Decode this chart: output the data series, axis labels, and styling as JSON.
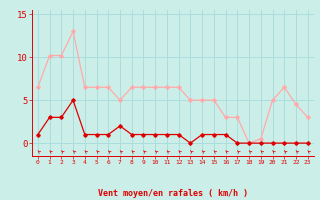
{
  "x": [
    0,
    1,
    2,
    3,
    4,
    5,
    6,
    7,
    8,
    9,
    10,
    11,
    12,
    13,
    14,
    15,
    16,
    17,
    18,
    19,
    20,
    21,
    22,
    23
  ],
  "rafales": [
    6.5,
    10.2,
    10.2,
    13.0,
    6.5,
    6.5,
    6.5,
    5.0,
    6.5,
    6.5,
    6.5,
    6.5,
    6.5,
    5.0,
    5.0,
    5.0,
    3.0,
    3.0,
    0.0,
    0.5,
    5.0,
    6.5,
    4.5,
    3.0
  ],
  "vent_moyen": [
    1.0,
    3.0,
    3.0,
    5.0,
    1.0,
    1.0,
    1.0,
    2.0,
    1.0,
    1.0,
    1.0,
    1.0,
    1.0,
    0.0,
    1.0,
    1.0,
    1.0,
    0.0,
    0.0,
    0.0,
    0.0,
    0.0,
    0.0,
    0.0
  ],
  "color_rafales": "#ffaaaa",
  "color_vent": "#dd0000",
  "bg_color": "#cceee8",
  "grid_color": "#aadddd",
  "xlabel": "Vent moyen/en rafales ( km/h )",
  "ytick_labels": [
    "0",
    "5",
    "10",
    "15"
  ],
  "ytick_vals": [
    0,
    5,
    10,
    15
  ],
  "ylim": [
    -1.5,
    15.5
  ],
  "xlim": [
    -0.5,
    23.5
  ],
  "xtick_labels": [
    "0",
    "1",
    "2",
    "3",
    "4",
    "5",
    "6",
    "7",
    "8",
    "9",
    "10",
    "11",
    "12",
    "13",
    "14",
    "15",
    "16",
    "17",
    "18",
    "19",
    "20",
    "21",
    "22",
    "23"
  ]
}
